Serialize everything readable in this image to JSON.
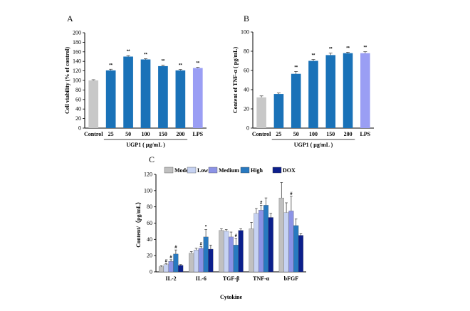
{
  "colors": {
    "control": "#c8c8c8",
    "treatment": "#1a72b8",
    "lps": "#9a9ef4",
    "model": "#c0c0c0",
    "low": "#c6d2f2",
    "medium": "#8c93e6",
    "high": "#2879c0",
    "dox": "#0c1f8c"
  },
  "chart_data": [
    {
      "panel": "A",
      "type": "bar",
      "categories": [
        "Control",
        "25",
        "50",
        "100",
        "150",
        "200",
        "LPS"
      ],
      "values": [
        100,
        121,
        150,
        144,
        130,
        121,
        126
      ],
      "errors": [
        1.5,
        2.5,
        2,
        1.5,
        2,
        2,
        1.5
      ],
      "annotations": [
        "",
        "**",
        "**",
        "**",
        "**",
        "**",
        "**"
      ],
      "xlabel": "UGP1 ( μg/mL )",
      "ylabel": "Cell viability (% of control)",
      "ylim": [
        0,
        200
      ],
      "yticks": [
        "0",
        "20",
        "40",
        "60",
        "80",
        "100",
        "120",
        "140",
        "160",
        "180",
        "200"
      ]
    },
    {
      "panel": "B",
      "type": "bar",
      "categories": [
        "Control",
        "25",
        "50",
        "100",
        "150",
        "200",
        "LPS"
      ],
      "values": [
        32,
        35.5,
        56.5,
        70,
        76,
        78,
        78
      ],
      "errors": [
        1.5,
        1,
        2.5,
        1.5,
        2,
        1,
        1.5
      ],
      "annotations": [
        "",
        "",
        "**",
        "**",
        "**",
        "**",
        "**"
      ],
      "xlabel": "UGP1 ( μg/mL )",
      "ylabel": "Content of TNF-α ( pg/mL)",
      "ylim": [
        0,
        100
      ],
      "yticks": [
        "0",
        "20",
        "40",
        "60",
        "80",
        "100"
      ]
    },
    {
      "panel": "C",
      "type": "bar",
      "categories": [
        "IL-2",
        "IL-6",
        "TGF-β",
        "TNF-α",
        "bFGF"
      ],
      "series": [
        {
          "name": "Model",
          "values": [
            6.5,
            23,
            51,
            53,
            91
          ],
          "errors": [
            1,
            2,
            2,
            8,
            19
          ]
        },
        {
          "name": "Low",
          "values": [
            9,
            27,
            50,
            72,
            73
          ],
          "errors": [
            1,
            2,
            2,
            6,
            12
          ]
        },
        {
          "name": "Medium",
          "values": [
            13,
            29,
            43,
            76,
            75
          ],
          "errors": [
            2,
            2,
            6,
            6,
            18
          ]
        },
        {
          "name": "High",
          "values": [
            22,
            43,
            33,
            82,
            57
          ],
          "errors": [
            5,
            9,
            8,
            9,
            8
          ]
        },
        {
          "name": "DOX",
          "values": [
            8,
            28,
            51,
            67,
            45
          ],
          "errors": [
            1,
            5,
            2,
            5,
            2
          ]
        }
      ],
      "annotations": [
        [
          "",
          "#",
          "#",
          "#",
          ""
        ],
        [
          "",
          "",
          "#",
          "*",
          ""
        ],
        [
          "",
          "",
          "",
          "#",
          ""
        ],
        [
          "",
          "",
          "#",
          "",
          ""
        ],
        [
          "",
          "",
          "#",
          "",
          ""
        ]
      ],
      "annotation_layout": "series-by-category",
      "xlabel": "Cytokine",
      "ylabel": "Content/（pg/mL）",
      "ylim": [
        0,
        120
      ],
      "yticks": [
        "0",
        "20",
        "40",
        "60",
        "80",
        "100",
        "120"
      ],
      "legend": [
        "Model",
        "Low",
        "Medium",
        "High",
        "DOX"
      ]
    }
  ],
  "panel_labels": [
    "A",
    "B",
    "C"
  ]
}
